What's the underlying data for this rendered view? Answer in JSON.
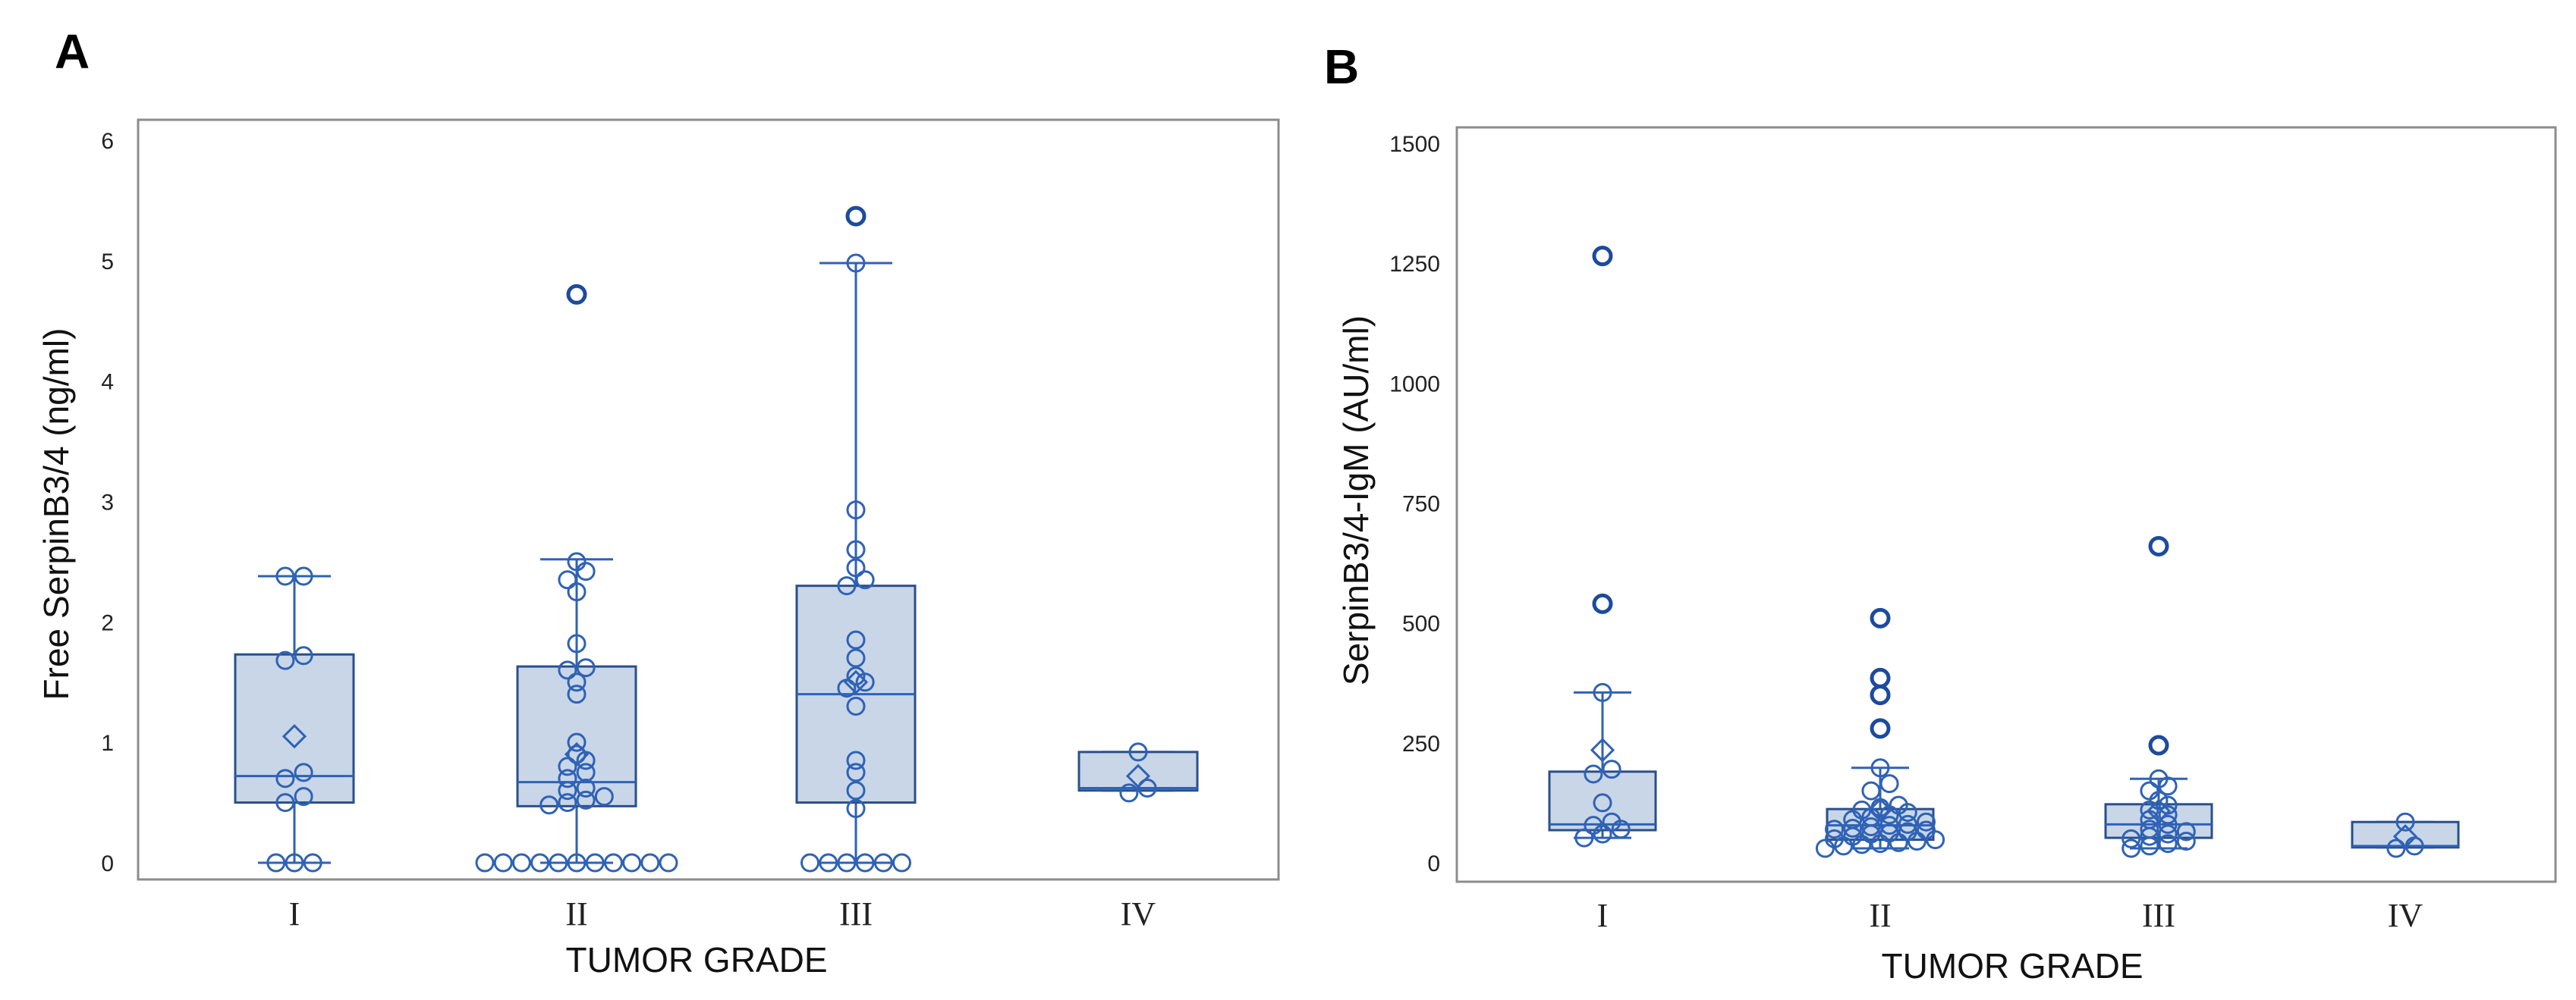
{
  "chart_data": [
    {
      "type": "box",
      "panel": "A",
      "ylabel": "Free SerpinB3/4   (ng/ml)",
      "xlabel": "TUMOR GRADE",
      "ylim": [
        0,
        6
      ],
      "yticks": [
        0,
        1,
        2,
        3,
        4,
        5,
        6
      ],
      "categories": [
        "I",
        "II",
        "III",
        "IV"
      ],
      "groups": [
        {
          "name": "I",
          "q1": 0.5,
          "median": 0.72,
          "q3": 1.73,
          "whisker_low": 0,
          "whisker_high": 2.38,
          "mean": 1.05,
          "points": [
            0,
            0,
            0,
            0.5,
            0.55,
            0.7,
            0.75,
            1.68,
            1.72,
            2.38,
            2.38
          ],
          "outliers": []
        },
        {
          "name": "II",
          "q1": 0.47,
          "median": 0.67,
          "q3": 1.63,
          "whisker_low": 0,
          "whisker_high": 2.52,
          "mean": 0.9,
          "points": [
            0,
            0,
            0,
            0,
            0,
            0,
            0,
            0,
            0,
            0,
            0,
            0.48,
            0.5,
            0.52,
            0.55,
            0.6,
            0.62,
            0.7,
            0.75,
            0.8,
            0.85,
            0.9,
            1.0,
            1.4,
            1.5,
            1.6,
            1.62,
            1.82,
            2.25,
            2.35,
            2.42,
            2.5
          ],
          "outliers": [
            4.72
          ]
        },
        {
          "name": "III",
          "q1": 0.5,
          "median": 1.4,
          "q3": 2.3,
          "whisker_low": 0,
          "whisker_high": 4.98,
          "mean": 1.5,
          "points": [
            0,
            0,
            0,
            0,
            0,
            0,
            0.45,
            0.6,
            0.75,
            0.85,
            1.3,
            1.45,
            1.5,
            1.55,
            1.7,
            1.85,
            2.3,
            2.35,
            2.45,
            2.6,
            2.93,
            4.98
          ],
          "outliers": [
            5.37
          ]
        },
        {
          "name": "IV",
          "q1": 0.6,
          "median": 0.62,
          "q3": 0.92,
          "whisker_low": 0.6,
          "whisker_high": 0.92,
          "mean": 0.72,
          "points": [
            0.58,
            0.62,
            0.92
          ],
          "outliers": []
        }
      ]
    },
    {
      "type": "box",
      "panel": "B",
      "ylabel": "SerpinB3/4-IgM  (AU/ml)",
      "xlabel": "TUMOR GRADE",
      "ylim": [
        0,
        1500
      ],
      "yticks": [
        0,
        250,
        500,
        750,
        1000,
        1250,
        1500
      ],
      "categories": [
        "I",
        "II",
        "III",
        "IV"
      ],
      "groups": [
        {
          "name": "I",
          "q1": 68,
          "median": 80,
          "q3": 190,
          "whisker_low": 52,
          "whisker_high": 355,
          "mean": 235,
          "points": [
            52,
            60,
            70,
            78,
            85,
            125,
            185,
            195,
            355
          ],
          "outliers": [
            540,
            1265
          ]
        },
        {
          "name": "II",
          "q1": 48,
          "median": 78,
          "q3": 112,
          "whisker_low": 30,
          "whisker_high": 198,
          "mean": 110,
          "points": [
            30,
            35,
            38,
            40,
            42,
            45,
            48,
            50,
            55,
            60,
            62,
            65,
            68,
            70,
            72,
            75,
            78,
            80,
            85,
            90,
            95,
            100,
            105,
            110,
            115,
            120,
            150,
            165,
            198
          ],
          "outliers": [
            280,
            350,
            385,
            510
          ]
        },
        {
          "name": "III",
          "q1": 52,
          "median": 80,
          "q3": 122,
          "whisker_low": 30,
          "whisker_high": 175,
          "mean": 108,
          "points": [
            30,
            35,
            40,
            45,
            50,
            55,
            60,
            65,
            70,
            80,
            90,
            100,
            110,
            120,
            130,
            150,
            160,
            175
          ],
          "outliers": [
            245,
            660
          ]
        },
        {
          "name": "IV",
          "q1": 32,
          "median": 35,
          "q3": 85,
          "whisker_low": 32,
          "whisker_high": 85,
          "mean": 55,
          "points": [
            30,
            35,
            85
          ],
          "outliers": []
        }
      ]
    }
  ]
}
